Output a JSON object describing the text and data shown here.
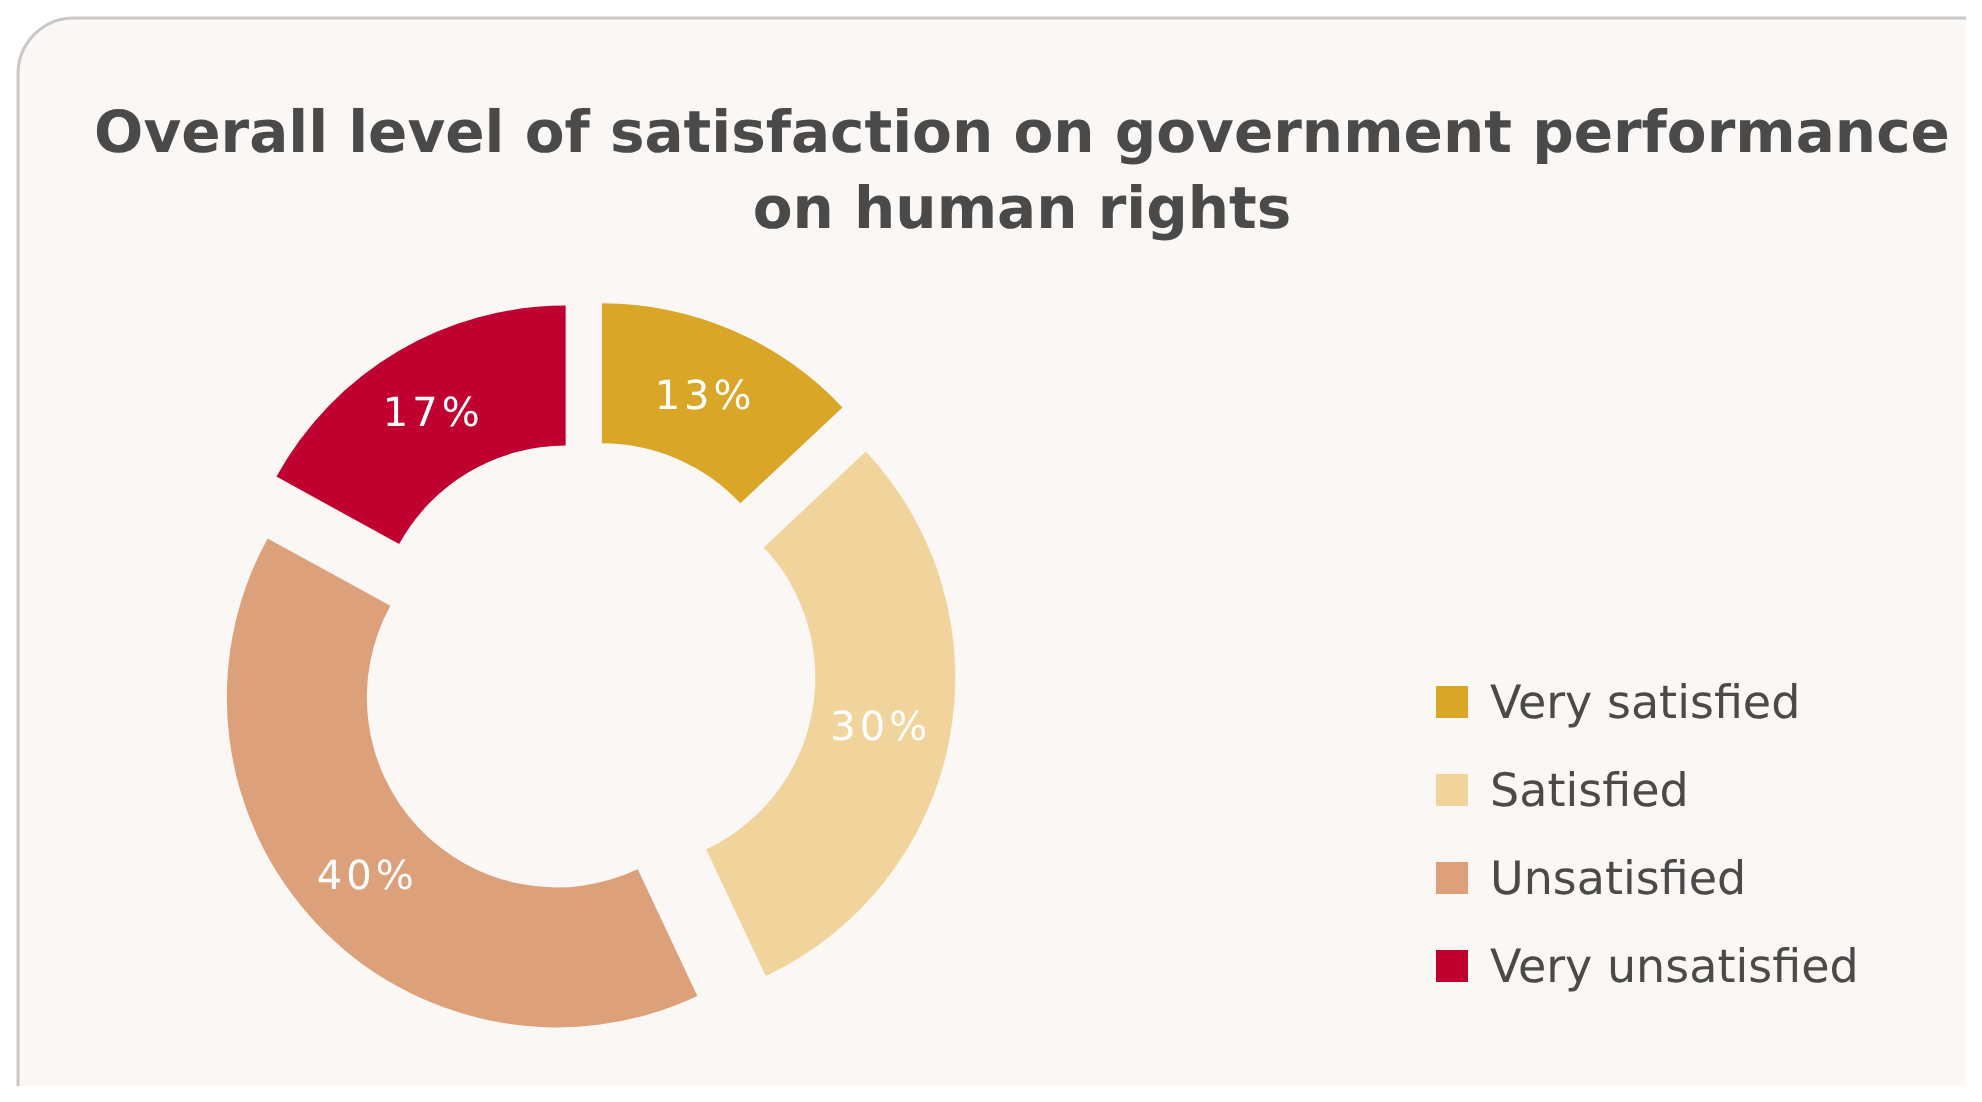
{
  "chart_data": {
    "type": "donut",
    "title": "Overall level of satisfaction on government performance on human rights",
    "categories": [
      "Very satisfied",
      "Satisfied",
      "Unsatisfied",
      "Very unsatisfied"
    ],
    "values": [
      13,
      30,
      40,
      17
    ],
    "colors": [
      "#daa628",
      "#f0d49c",
      "#dca07a",
      "#c0002f"
    ],
    "value_labels": [
      "13%",
      "30%",
      "40%",
      "17%"
    ],
    "legend": "right"
  }
}
